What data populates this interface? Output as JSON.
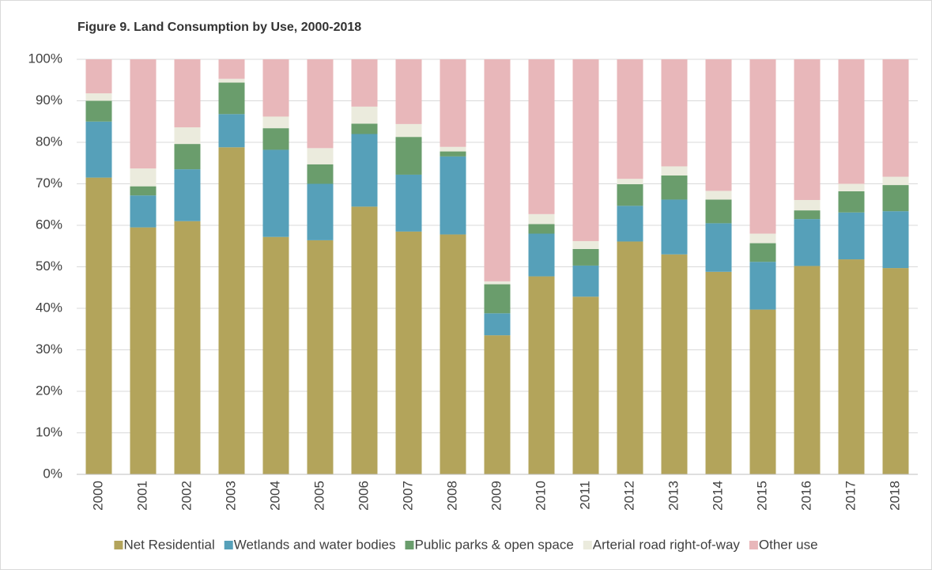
{
  "chart_data": {
    "type": "stacked_bar",
    "title": "Figure 9. Land Consumption by Use, 2000-2018",
    "categories": [
      "2000",
      "2001",
      "2002",
      "2003",
      "2004",
      "2005",
      "2006",
      "2007",
      "2008",
      "2009",
      "2010",
      "2011",
      "2012",
      "2013",
      "2014",
      "2015",
      "2016",
      "2017",
      "2018"
    ],
    "series": [
      {
        "name": "Net Residential",
        "color": "#b3a45b",
        "values": [
          71.5,
          59.5,
          61,
          78.8,
          57.2,
          56.4,
          64.5,
          58.5,
          57.8,
          33.5,
          47.7,
          42.8,
          56.1,
          53,
          48.8,
          39.7,
          50.2,
          51.8,
          49.7
        ]
      },
      {
        "name": "Wetlands and water bodies",
        "color": "#56a0b9",
        "values": [
          13.5,
          7.7,
          12.5,
          8,
          21,
          13.6,
          17.5,
          13.7,
          18.8,
          5.3,
          10.3,
          7.5,
          8.6,
          13.2,
          11.7,
          11.5,
          11.3,
          11.3,
          13.7
        ]
      },
      {
        "name": "Public parks & open space",
        "color": "#6a9d6c",
        "values": [
          5,
          2.2,
          6.1,
          7.6,
          5.2,
          4.7,
          2.5,
          9.1,
          1.2,
          7,
          2.3,
          4,
          5.2,
          5.8,
          5.7,
          4.5,
          2.1,
          5.1,
          6.3
        ]
      },
      {
        "name": "Arterial road right-of-way",
        "color": "#ebebdd",
        "values": [
          1.8,
          4.3,
          4,
          0.9,
          2.8,
          3.9,
          4.1,
          3.1,
          1.1,
          0.7,
          2.4,
          1.9,
          1.3,
          2.2,
          2.1,
          2.3,
          2.5,
          1.8,
          2
        ]
      },
      {
        "name": "Other use",
        "color": "#e8b7ba",
        "values": [
          8.2,
          26.3,
          16.4,
          4.7,
          13.8,
          21.4,
          11.4,
          15.6,
          21.1,
          53.5,
          37.3,
          43.8,
          28.8,
          25.8,
          31.7,
          42,
          33.9,
          30,
          28.3
        ]
      }
    ],
    "ylim": [
      0,
      100
    ],
    "yticks": [
      {
        "value": 0,
        "label": "0%"
      },
      {
        "value": 10,
        "label": "10%"
      },
      {
        "value": 20,
        "label": "20%"
      },
      {
        "value": 30,
        "label": "30%"
      },
      {
        "value": 40,
        "label": "40%"
      },
      {
        "value": 50,
        "label": "50%"
      },
      {
        "value": 60,
        "label": "60%"
      },
      {
        "value": 70,
        "label": "70%"
      },
      {
        "value": 80,
        "label": "80%"
      },
      {
        "value": 90,
        "label": "90%"
      },
      {
        "value": 100,
        "label": "100%"
      }
    ],
    "grid": true,
    "legend": "bottom"
  }
}
